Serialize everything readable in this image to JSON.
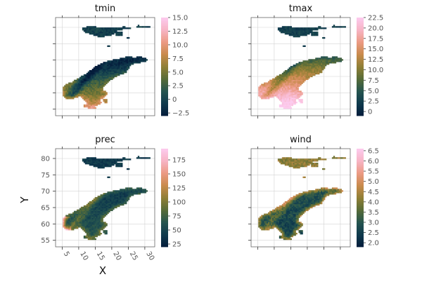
{
  "chart_data": {
    "type": "heatmap",
    "xlabel": "X",
    "ylabel": "Y",
    "xlim": [
      3,
      33
    ],
    "ylim": [
      53,
      83
    ],
    "x_ticks": [
      5,
      10,
      15,
      20,
      25,
      30
    ],
    "y_ticks": [
      55,
      60,
      65,
      70,
      75,
      80
    ],
    "x_tick_labels": [
      "5",
      "10",
      "15",
      "20",
      "25",
      "30"
    ],
    "y_tick_labels": [
      "55",
      "60",
      "65",
      "70",
      "75",
      "80"
    ],
    "grid": true,
    "colors": {
      "colormap_stops": [
        "#041c3b",
        "#0f3a4d",
        "#25544f",
        "#566b38",
        "#8f7f35",
        "#c88a4c",
        "#eb9a83",
        "#f7b4c4",
        "#fccbee"
      ],
      "grid": "#d3d3d3",
      "frame": "#666666"
    },
    "panels": [
      {
        "title": "tmin",
        "colorbar": {
          "min": -3,
          "max": 15,
          "ticks": [
            -2.5,
            0,
            2.5,
            5,
            7.5,
            10,
            12.5,
            15
          ],
          "tick_labels": [
            "−2.5",
            "0",
            "2.5",
            "5.0",
            "7.5",
            "10.0",
            "12.5",
            "15.0"
          ]
        },
        "field": {
          "base": 0.45,
          "lat_gradient": -0.045,
          "mountain_effect": -0.28,
          "coast_effect": 0.12,
          "svalbard_value": 0.15,
          "noise": 0.07
        }
      },
      {
        "title": "tmax",
        "colorbar": {
          "min": -1,
          "max": 22.5,
          "ticks": [
            0,
            2.5,
            5,
            7.5,
            10,
            12.5,
            15,
            17.5,
            20,
            22.5
          ],
          "tick_labels": [
            "0",
            "2.5",
            "5.0",
            "7.5",
            "10.0",
            "12.5",
            "15.0",
            "17.5",
            "20.0",
            "22.5"
          ]
        },
        "field": {
          "base": 0.86,
          "lat_gradient": -0.05,
          "mountain_effect": -0.22,
          "coast_effect": -0.05,
          "svalbard_value": 0.15,
          "noise": 0.06
        }
      },
      {
        "title": "prec",
        "colorbar": {
          "min": 20,
          "max": 195,
          "ticks": [
            25,
            50,
            75,
            100,
            125,
            150,
            175
          ],
          "tick_labels": [
            "25",
            "50",
            "75",
            "100",
            "125",
            "150",
            "175"
          ]
        },
        "field": {
          "base": 0.22,
          "lat_gradient": -0.01,
          "mountain_effect": 0.18,
          "coast_effect": 0.45,
          "svalbard_value": 0.12,
          "noise": 0.06
        }
      },
      {
        "title": "wind",
        "colorbar": {
          "min": 1.8,
          "max": 6.6,
          "ticks": [
            2,
            2.5,
            3,
            3.5,
            4,
            4.5,
            5,
            5.5,
            6,
            6.5
          ],
          "tick_labels": [
            "2.0",
            "2.5",
            "3.0",
            "3.5",
            "4.0",
            "4.5",
            "5.0",
            "5.5",
            "6.0",
            "6.5"
          ]
        },
        "field": {
          "base": 0.18,
          "lat_gradient": 0.005,
          "mountain_effect": 0.2,
          "coast_effect": 0.35,
          "svalbard_value": 0.5,
          "noise": 0.09
        }
      }
    ]
  }
}
